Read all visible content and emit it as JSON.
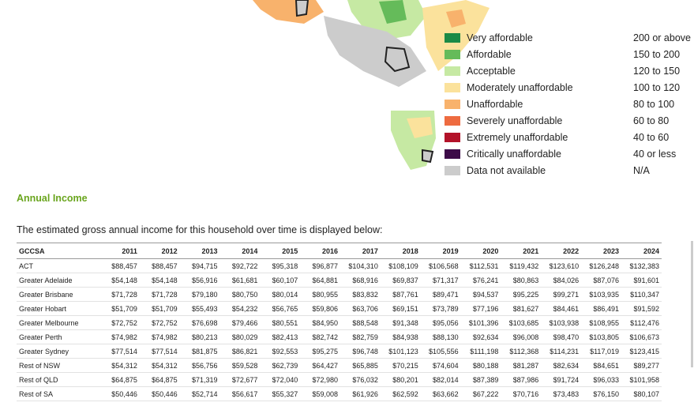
{
  "legend": [
    {
      "label": "Very affordable",
      "range": "200 or above",
      "color": "#1b8a46"
    },
    {
      "label": "Affordable",
      "range": "150 to 200",
      "color": "#65bb5a"
    },
    {
      "label": "Acceptable",
      "range": "120 to 150",
      "color": "#c6e9a3"
    },
    {
      "label": "Moderately unaffordable",
      "range": "100 to 120",
      "color": "#fbe29c"
    },
    {
      "label": "Unaffordable",
      "range": "80 to 100",
      "color": "#f8b26c"
    },
    {
      "label": "Severely unaffordable",
      "range": "60 to 80",
      "color": "#ee6b40"
    },
    {
      "label": "Extremely unaffordable",
      "range": "40 to 60",
      "color": "#b31229"
    },
    {
      "label": "Critically unaffordable",
      "range": "40 or less",
      "color": "#3d0b48"
    },
    {
      "label": "Data not available",
      "range": "N/A",
      "color": "#cccccc"
    }
  ],
  "section": {
    "title": "Annual Income",
    "description": "The estimated gross annual income for this household over time is displayed below:"
  },
  "table": {
    "header": [
      "GCCSA",
      "2011",
      "2012",
      "2013",
      "2014",
      "2015",
      "2016",
      "2017",
      "2018",
      "2019",
      "2020",
      "2021",
      "2022",
      "2023",
      "2024"
    ],
    "rows": [
      [
        "ACT",
        "$88,457",
        "$88,457",
        "$94,715",
        "$92,722",
        "$95,318",
        "$96,877",
        "$104,310",
        "$108,109",
        "$106,568",
        "$112,531",
        "$119,432",
        "$123,610",
        "$126,248",
        "$132,383"
      ],
      [
        "Greater Adelaide",
        "$54,148",
        "$54,148",
        "$56,916",
        "$61,681",
        "$60,107",
        "$64,881",
        "$68,916",
        "$69,837",
        "$71,317",
        "$76,241",
        "$80,863",
        "$84,026",
        "$87,076",
        "$91,601"
      ],
      [
        "Greater Brisbane",
        "$71,728",
        "$71,728",
        "$79,180",
        "$80,750",
        "$80,014",
        "$80,955",
        "$83,832",
        "$87,761",
        "$89,471",
        "$94,537",
        "$95,225",
        "$99,271",
        "$103,935",
        "$110,347"
      ],
      [
        "Greater Hobart",
        "$51,709",
        "$51,709",
        "$55,493",
        "$54,232",
        "$56,765",
        "$59,806",
        "$63,706",
        "$69,151",
        "$73,789",
        "$77,196",
        "$81,627",
        "$84,461",
        "$86,491",
        "$91,592"
      ],
      [
        "Greater Melbourne",
        "$72,752",
        "$72,752",
        "$76,698",
        "$79,466",
        "$80,551",
        "$84,950",
        "$88,548",
        "$91,348",
        "$95,056",
        "$101,396",
        "$103,685",
        "$103,938",
        "$108,955",
        "$112,476"
      ],
      [
        "Greater Perth",
        "$74,982",
        "$74,982",
        "$80,213",
        "$80,029",
        "$82,413",
        "$82,742",
        "$82,759",
        "$84,938",
        "$88,130",
        "$92,634",
        "$96,008",
        "$98,470",
        "$103,805",
        "$106,673"
      ],
      [
        "Greater Sydney",
        "$77,514",
        "$77,514",
        "$81,875",
        "$86,821",
        "$92,553",
        "$95,275",
        "$96,748",
        "$101,123",
        "$105,556",
        "$111,198",
        "$112,368",
        "$114,231",
        "$117,019",
        "$123,415"
      ],
      [
        "Rest of NSW",
        "$54,312",
        "$54,312",
        "$56,756",
        "$59,528",
        "$62,739",
        "$64,427",
        "$65,885",
        "$70,215",
        "$74,604",
        "$80,188",
        "$81,287",
        "$82,634",
        "$84,651",
        "$89,277"
      ],
      [
        "Rest of QLD",
        "$64,875",
        "$64,875",
        "$71,319",
        "$72,677",
        "$72,040",
        "$72,980",
        "$76,032",
        "$80,201",
        "$82,014",
        "$87,389",
        "$87,986",
        "$91,724",
        "$96,033",
        "$101,958"
      ],
      [
        "Rest of SA",
        "$50,446",
        "$50,446",
        "$52,714",
        "$56,617",
        "$55,327",
        "$59,008",
        "$61,926",
        "$62,592",
        "$63,662",
        "$67,222",
        "$70,716",
        "$73,483",
        "$76,150",
        "$80,107"
      ]
    ]
  }
}
